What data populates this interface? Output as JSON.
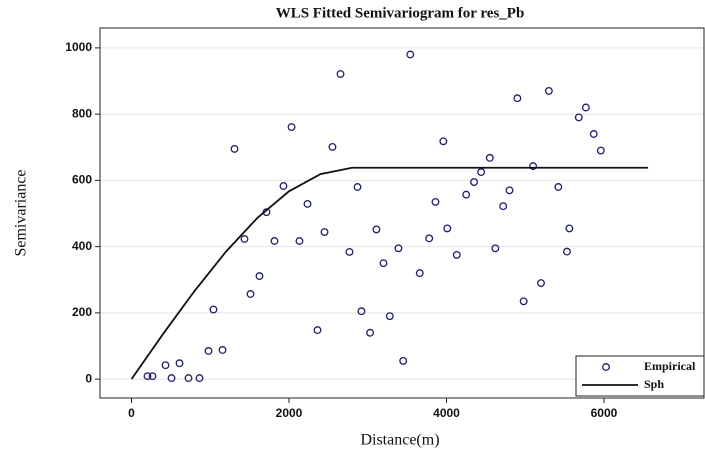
{
  "chart_data": {
    "type": "scatter",
    "title": "WLS Fitted Semivariogram for res_Pb",
    "x_label": "Distance(m)",
    "y_label": "Semivariance",
    "xlim": [
      -400,
      7270
    ],
    "ylim": [
      -57,
      1060
    ],
    "xticks": [
      0,
      2000,
      4000,
      6000
    ],
    "yticks": [
      0,
      200,
      400,
      600,
      800,
      1000
    ],
    "grid": true,
    "legend": "lower right",
    "series": [
      {
        "name": "Empirical",
        "type": "scatter",
        "color": "#1f1f6b",
        "x": [
          203,
          267,
          432,
          508,
          610,
          724,
          863,
          978,
          1041,
          1156,
          1308,
          1435,
          1511,
          1625,
          1714,
          1816,
          1930,
          2032,
          2133,
          2235,
          2362,
          2451,
          2552,
          2654,
          2768,
          2870,
          2920,
          3030,
          3110,
          3200,
          3280,
          3390,
          3450,
          3540,
          3660,
          3780,
          3860,
          3960,
          4010,
          4130,
          4250,
          4350,
          4440,
          4550,
          4620,
          4720,
          4800,
          4900,
          4980,
          5100,
          5200,
          5300,
          5420,
          5530,
          5560,
          5680,
          5770,
          5870,
          5960
        ],
        "values": [
          9,
          9,
          42,
          3,
          48,
          3,
          3,
          85,
          210,
          88,
          695,
          423,
          257,
          311,
          504,
          417,
          583,
          761,
          417,
          529,
          148,
          444,
          701,
          921,
          384,
          580,
          205,
          140,
          452,
          350,
          190,
          395,
          55,
          980,
          320,
          425,
          535,
          718,
          455,
          375,
          557,
          595,
          625,
          668,
          395,
          522,
          570,
          848,
          235,
          643,
          290,
          870,
          580,
          385,
          455,
          790,
          820,
          740,
          690
        ]
      },
      {
        "name": "Sph",
        "type": "line",
        "color": "#111111",
        "x": [
          0,
          400,
          800,
          1200,
          1600,
          2000,
          2400,
          2800,
          6560
        ],
        "values": [
          0,
          136,
          266,
          385,
          487,
          567,
          619,
          638,
          638
        ]
      }
    ]
  }
}
